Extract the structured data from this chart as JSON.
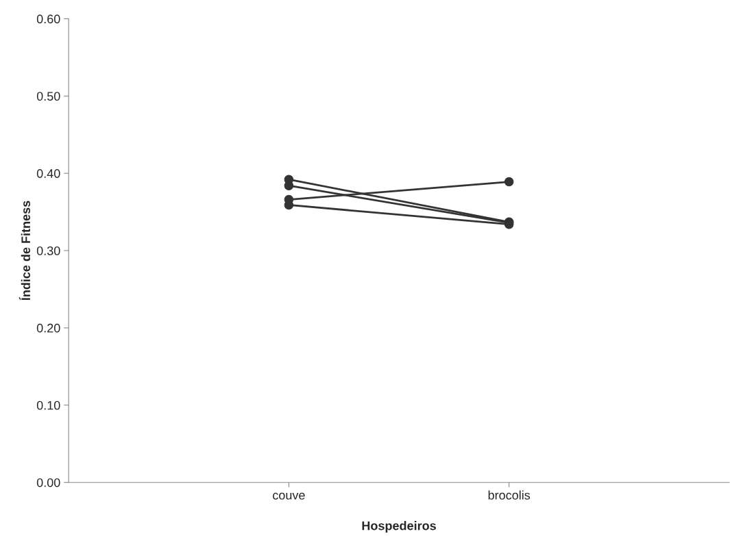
{
  "chart_data": {
    "type": "line",
    "xlabel": "Hospedeiros",
    "ylabel": "Índice de Fitness",
    "categories": [
      "couve",
      "brocolis"
    ],
    "series": [
      {
        "color": "#333333",
        "values": [
          0.392,
          0.337
        ]
      },
      {
        "color": "#333333",
        "values": [
          0.384,
          0.336
        ]
      },
      {
        "color": "#333333",
        "values": [
          0.366,
          0.389
        ]
      },
      {
        "color": "#333333",
        "values": [
          0.359,
          0.334
        ]
      }
    ],
    "ylim": [
      0,
      0.6
    ],
    "yticks": [
      {
        "value": 0,
        "label": "0.00"
      },
      {
        "value": 0.1,
        "label": "0.10"
      },
      {
        "value": 0.2,
        "label": "0.20"
      },
      {
        "value": 0.3,
        "label": "0.30"
      },
      {
        "value": 0.4,
        "label": "0.40"
      },
      {
        "value": 0.5,
        "label": "0.50"
      },
      {
        "value": 0.6,
        "label": "0.60"
      }
    ],
    "marker": "circle",
    "line_style": "solid"
  }
}
